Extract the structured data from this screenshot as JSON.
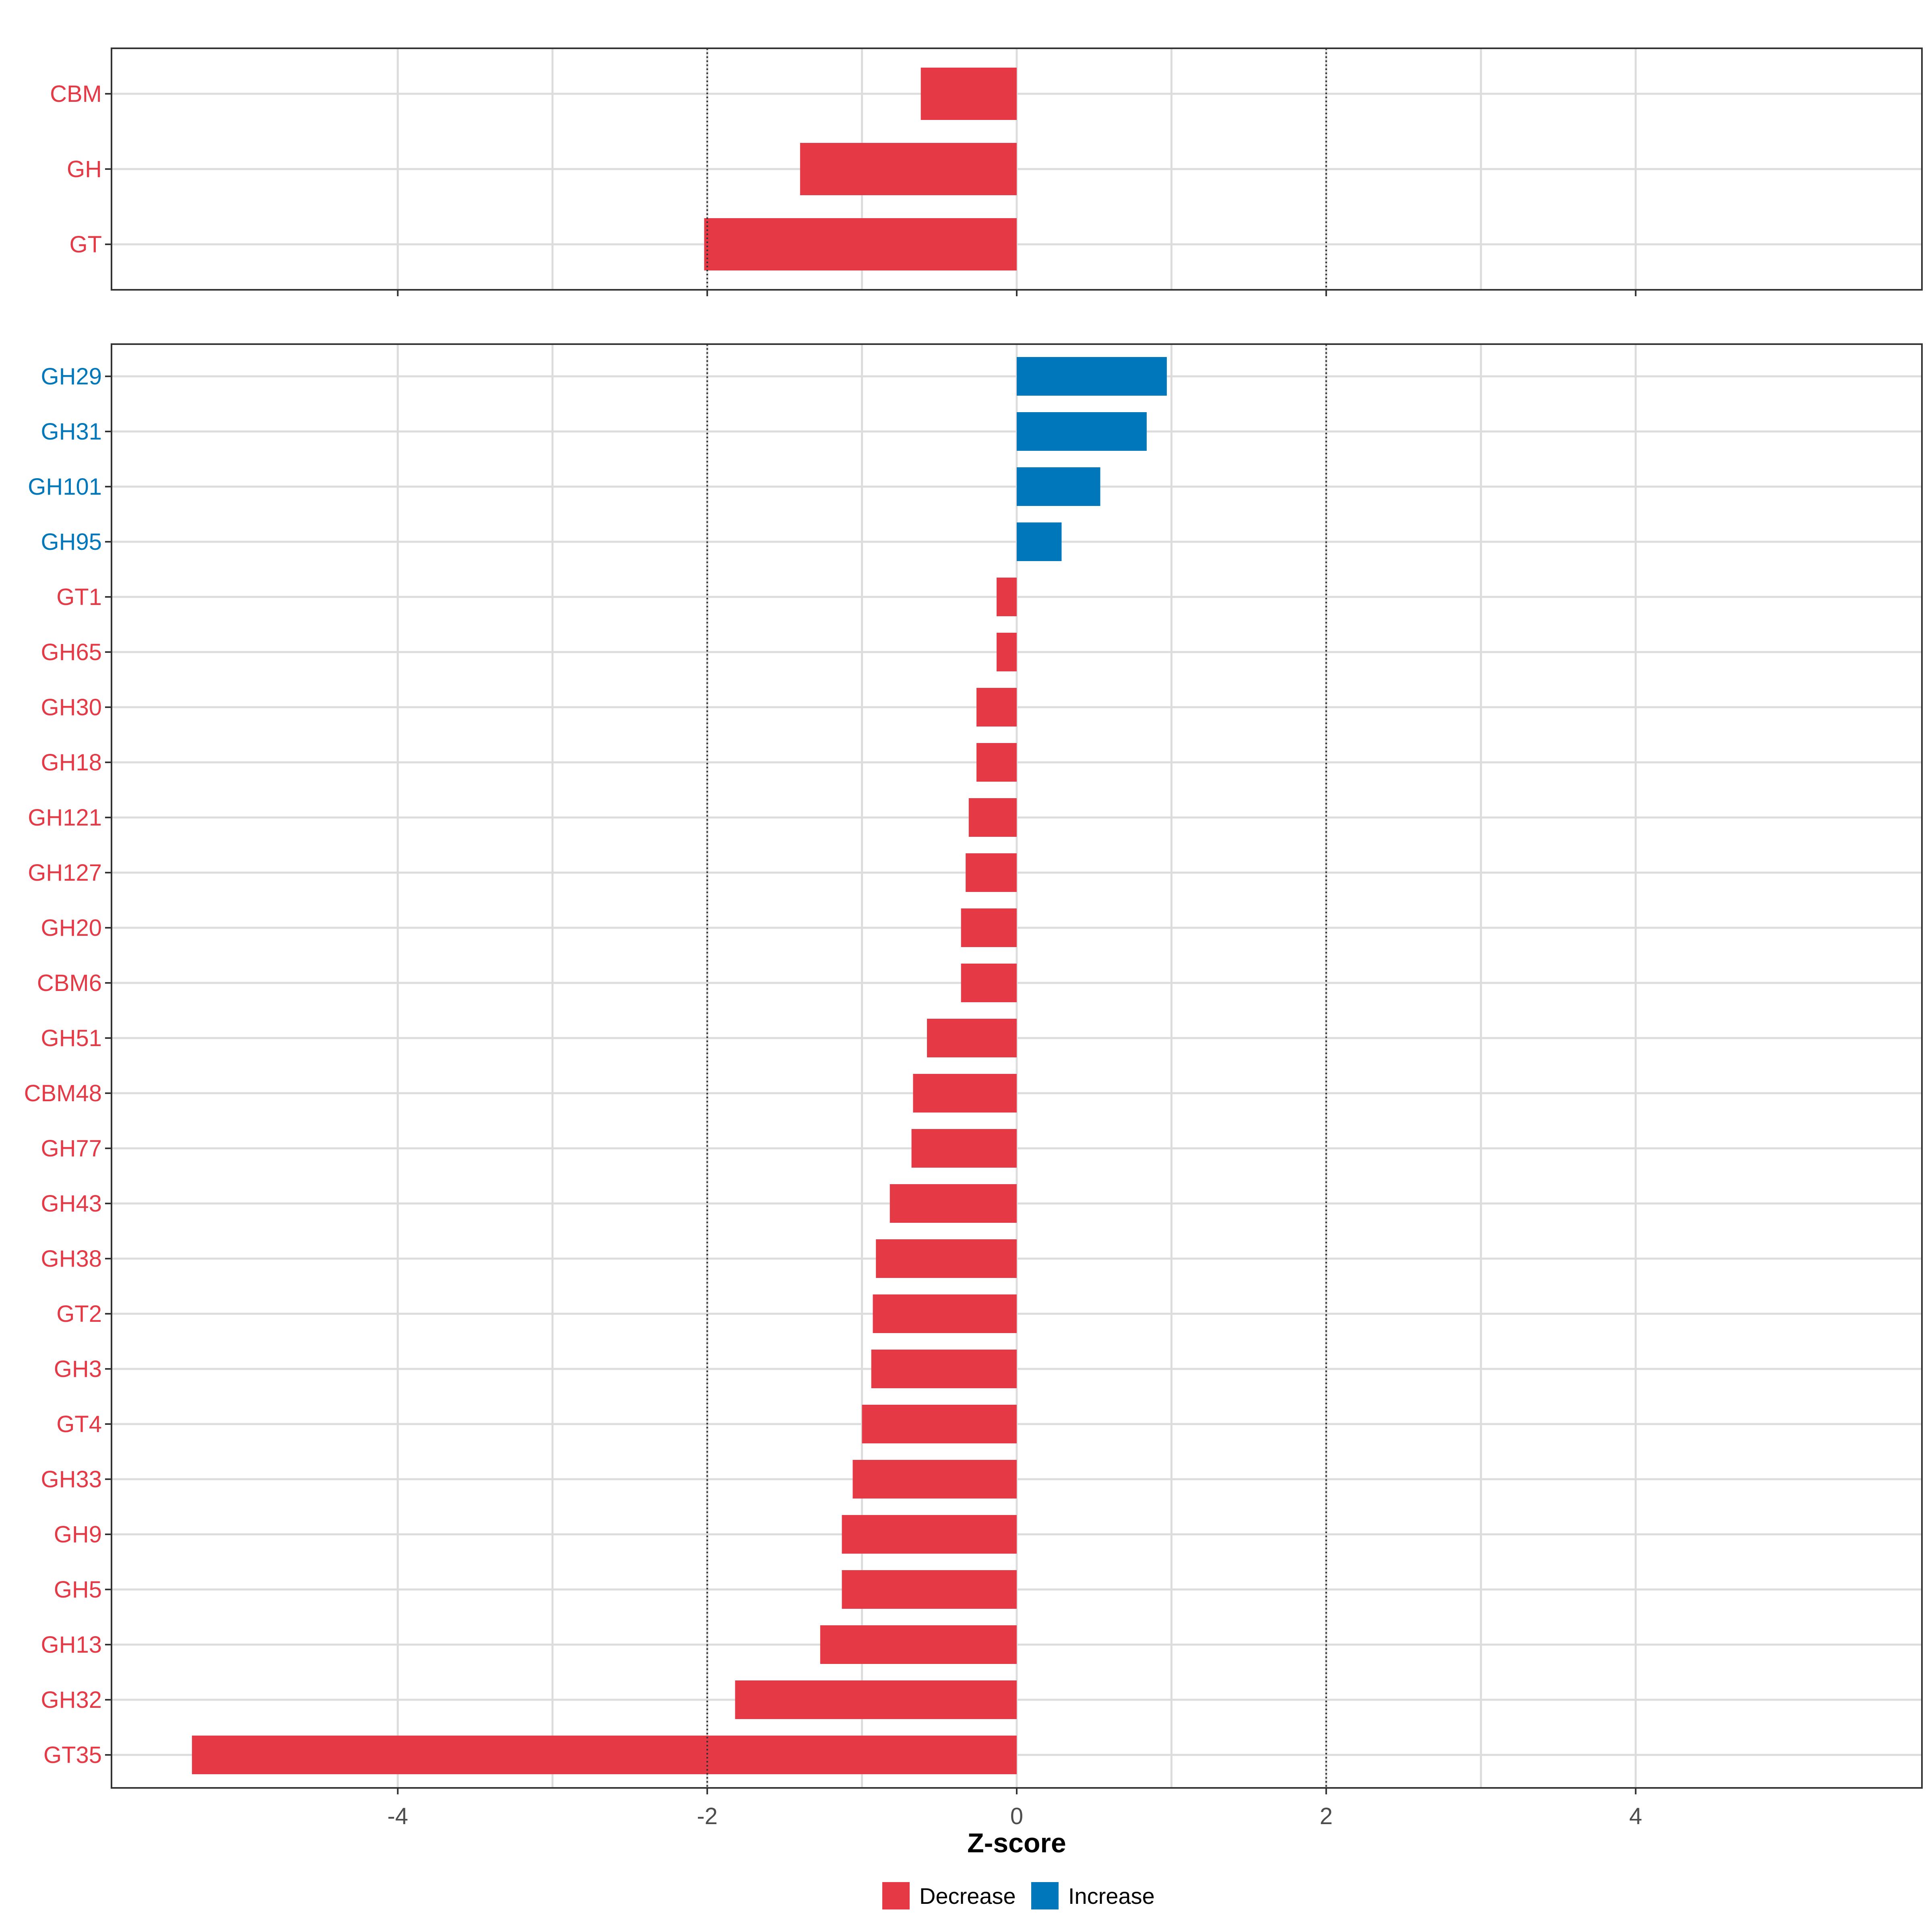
{
  "colors": {
    "decrease": "#E63946",
    "increase": "#0077BB",
    "grid": "#DCDCDC",
    "panel_border": "#333333",
    "reference_line": "#333333",
    "tick_text": "#4D4D4D"
  },
  "chart_data": {
    "type": "bar",
    "orientation": "horizontal",
    "xlabel": "Z-score",
    "xlim": [
      -5.85,
      5.85
    ],
    "xticks": [
      -4,
      -2,
      0,
      2,
      4
    ],
    "xtick_labels": [
      "-4",
      "-2",
      "0",
      "2",
      "4"
    ],
    "reference_lines": [
      -2,
      2
    ],
    "grid": true,
    "legend": {
      "position": "bottom",
      "entries": [
        {
          "key": "decrease",
          "label": "Decrease"
        },
        {
          "key": "increase",
          "label": "Increase"
        }
      ]
    },
    "panels": [
      {
        "name": "top",
        "categories": [
          "CBM",
          "GH",
          "GT"
        ],
        "values": [
          -0.62,
          -1.4,
          -2.02
        ],
        "direction": [
          "decrease",
          "decrease",
          "decrease"
        ]
      },
      {
        "name": "bottom",
        "categories": [
          "GH29",
          "GH31",
          "GH101",
          "GH95",
          "GT1",
          "GH65",
          "GH30",
          "GH18",
          "GH121",
          "GH127",
          "GH20",
          "CBM6",
          "GH51",
          "CBM48",
          "GH77",
          "GH43",
          "GH38",
          "GT2",
          "GH3",
          "GT4",
          "GH33",
          "GH9",
          "GH5",
          "GH13",
          "GH32",
          "GT35"
        ],
        "values": [
          0.97,
          0.84,
          0.54,
          0.29,
          -0.13,
          -0.13,
          -0.26,
          -0.26,
          -0.31,
          -0.33,
          -0.36,
          -0.36,
          -0.58,
          -0.67,
          -0.68,
          -0.82,
          -0.91,
          -0.93,
          -0.94,
          -1.0,
          -1.06,
          -1.13,
          -1.13,
          -1.27,
          -1.82,
          -5.33
        ],
        "direction": [
          "increase",
          "increase",
          "increase",
          "increase",
          "decrease",
          "decrease",
          "decrease",
          "decrease",
          "decrease",
          "decrease",
          "decrease",
          "decrease",
          "decrease",
          "decrease",
          "decrease",
          "decrease",
          "decrease",
          "decrease",
          "decrease",
          "decrease",
          "decrease",
          "decrease",
          "decrease",
          "decrease",
          "decrease",
          "decrease"
        ]
      }
    ]
  }
}
